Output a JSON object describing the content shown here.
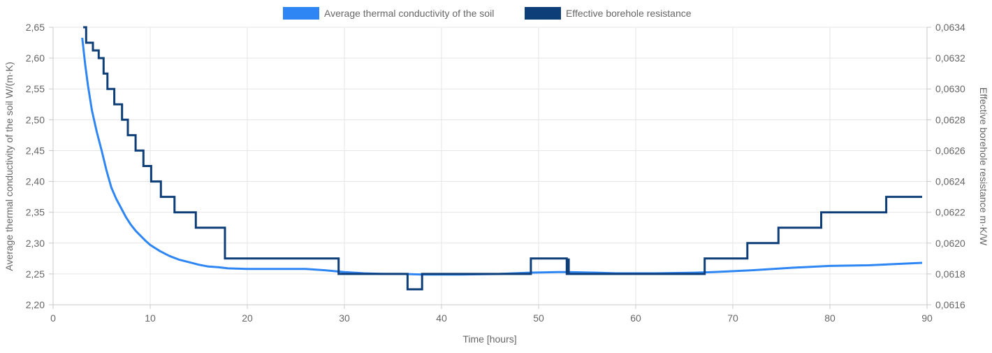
{
  "colors": {
    "conductivity": "#2e86f5",
    "resistance": "#0d3e78",
    "grid": "#e5e5e5",
    "axis": "#c8c8c8",
    "text": "#666666"
  },
  "chart_data": {
    "type": "line",
    "legend_position": "top",
    "grid": true,
    "x_axis": {
      "label": "Time [hours]",
      "range": [
        0,
        90
      ],
      "ticks": [
        0,
        10,
        20,
        30,
        40,
        50,
        60,
        70,
        80,
        90
      ],
      "tick_labels": [
        "0",
        "10",
        "20",
        "30",
        "40",
        "50",
        "60",
        "70",
        "80",
        "90"
      ]
    },
    "y_axis_left": {
      "label": "Average thermal conductivity of the soil W/(m·K)",
      "range": [
        2.2,
        2.65
      ],
      "ticks": [
        2.2,
        2.25,
        2.3,
        2.35,
        2.4,
        2.45,
        2.5,
        2.55,
        2.6,
        2.65
      ],
      "tick_labels": [
        "2,20",
        "2,25",
        "2,30",
        "2,35",
        "2,40",
        "2,45",
        "2,50",
        "2,55",
        "2,60",
        "2,65"
      ]
    },
    "y_axis_right": {
      "label": "Effective borehole resistance m·K/W",
      "range": [
        0.0616,
        0.0634
      ],
      "ticks": [
        0.0616,
        0.0618,
        0.062,
        0.0622,
        0.0624,
        0.0626,
        0.0628,
        0.063,
        0.0632,
        0.0634
      ],
      "tick_labels": [
        "0,0616",
        "0,0618",
        "0,0620",
        "0,0622",
        "0,0624",
        "0,0626",
        "0,0628",
        "0,0630",
        "0,0632",
        "0,0634"
      ]
    },
    "series": [
      {
        "name": "Average thermal conductivity of the soil",
        "axis": "left",
        "style": "smooth",
        "points": [
          [
            3.0,
            2.633
          ],
          [
            3.3,
            2.59
          ],
          [
            3.6,
            2.555
          ],
          [
            4.0,
            2.515
          ],
          [
            4.5,
            2.48
          ],
          [
            5.0,
            2.45
          ],
          [
            5.5,
            2.418
          ],
          [
            6.0,
            2.39
          ],
          [
            6.5,
            2.372
          ],
          [
            7.0,
            2.357
          ],
          [
            7.5,
            2.342
          ],
          [
            8.0,
            2.33
          ],
          [
            8.5,
            2.32
          ],
          [
            9.0,
            2.312
          ],
          [
            9.5,
            2.304
          ],
          [
            10.0,
            2.297
          ],
          [
            11.0,
            2.287
          ],
          [
            12.0,
            2.279
          ],
          [
            13.0,
            2.273
          ],
          [
            14.0,
            2.269
          ],
          [
            15.0,
            2.265
          ],
          [
            16.0,
            2.262
          ],
          [
            17.0,
            2.261
          ],
          [
            18.0,
            2.259
          ],
          [
            20.0,
            2.258
          ],
          [
            22.0,
            2.258
          ],
          [
            24.0,
            2.258
          ],
          [
            26.0,
            2.258
          ],
          [
            28.0,
            2.256
          ],
          [
            30.0,
            2.253
          ],
          [
            32.0,
            2.251
          ],
          [
            34.0,
            2.25
          ],
          [
            36.0,
            2.25
          ],
          [
            38.0,
            2.249
          ],
          [
            42.0,
            2.249
          ],
          [
            46.0,
            2.25
          ],
          [
            49.0,
            2.252
          ],
          [
            52.0,
            2.253
          ],
          [
            53.0,
            2.253
          ],
          [
            56.0,
            2.252
          ],
          [
            58.0,
            2.251
          ],
          [
            62.0,
            2.251
          ],
          [
            66.0,
            2.252
          ],
          [
            68.0,
            2.253
          ],
          [
            72.0,
            2.256
          ],
          [
            76.0,
            2.26
          ],
          [
            80.0,
            2.263
          ],
          [
            84.0,
            2.264
          ],
          [
            89.5,
            2.268
          ]
        ]
      },
      {
        "name": "Effective borehole resistance",
        "axis": "right",
        "style": "step",
        "points": [
          [
            3.1,
            0.0634
          ],
          [
            3.4,
            0.0634
          ],
          [
            3.4,
            0.0633
          ],
          [
            4.1,
            0.0633
          ],
          [
            4.1,
            0.06325
          ],
          [
            4.7,
            0.06325
          ],
          [
            4.7,
            0.0632
          ],
          [
            5.2,
            0.0632
          ],
          [
            5.2,
            0.0631
          ],
          [
            5.6,
            0.0631
          ],
          [
            5.6,
            0.063
          ],
          [
            6.3,
            0.063
          ],
          [
            6.3,
            0.0629
          ],
          [
            7.1,
            0.0629
          ],
          [
            7.1,
            0.0628
          ],
          [
            7.7,
            0.0628
          ],
          [
            7.7,
            0.0627
          ],
          [
            8.5,
            0.0627
          ],
          [
            8.5,
            0.0626
          ],
          [
            9.3,
            0.0626
          ],
          [
            9.3,
            0.0625
          ],
          [
            10.1,
            0.0625
          ],
          [
            10.1,
            0.0624
          ],
          [
            11.1,
            0.0624
          ],
          [
            11.1,
            0.0623
          ],
          [
            12.5,
            0.0623
          ],
          [
            12.5,
            0.0622
          ],
          [
            14.7,
            0.0622
          ],
          [
            14.7,
            0.0621
          ],
          [
            17.7,
            0.0621
          ],
          [
            17.7,
            0.0619
          ],
          [
            29.4,
            0.0619
          ],
          [
            29.4,
            0.0618
          ],
          [
            36.5,
            0.0618
          ],
          [
            36.5,
            0.0617
          ],
          [
            38.0,
            0.0617
          ],
          [
            38.0,
            0.0618
          ],
          [
            49.2,
            0.0618
          ],
          [
            49.2,
            0.0619
          ],
          [
            52.9,
            0.0619
          ],
          [
            52.9,
            0.0618
          ],
          [
            53.1,
            0.0618
          ],
          [
            53.1,
            0.0619
          ],
          [
            53.1,
            0.0618
          ],
          [
            67.1,
            0.0618
          ],
          [
            67.1,
            0.0619
          ],
          [
            71.5,
            0.0619
          ],
          [
            71.5,
            0.062
          ],
          [
            74.7,
            0.062
          ],
          [
            74.7,
            0.0621
          ],
          [
            79.1,
            0.0621
          ],
          [
            79.1,
            0.0622
          ],
          [
            85.8,
            0.0622
          ],
          [
            85.8,
            0.0623
          ],
          [
            89.5,
            0.0623
          ]
        ]
      }
    ]
  }
}
